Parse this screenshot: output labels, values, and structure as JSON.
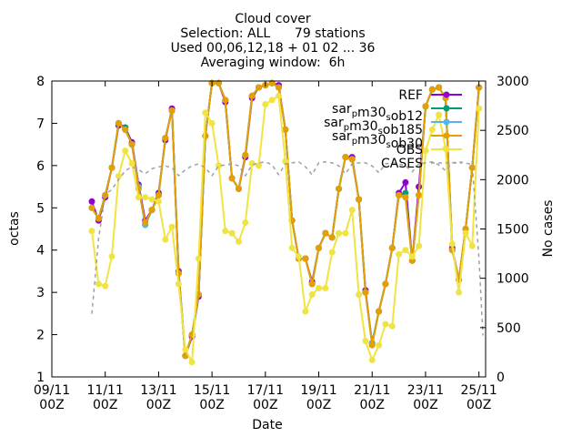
{
  "chart_data": {
    "type": "line",
    "title_lines": [
      "Cloud cover",
      "Selection: ALL      79 stations",
      "Used 00,06,12,18 + 01 02 ... 36",
      "Averaging window:  6h"
    ],
    "xlabel": "Date",
    "ylabel": "octas",
    "y2label": "No cases",
    "xlim": [
      0,
      16.25
    ],
    "ylim": [
      1,
      8
    ],
    "y2lim": [
      0,
      3000
    ],
    "x_ticks": [
      {
        "x": 0,
        "line1": "09/11",
        "line2": "00Z"
      },
      {
        "x": 2,
        "line1": "11/11",
        "line2": "00Z"
      },
      {
        "x": 4,
        "line1": "13/11",
        "line2": "00Z"
      },
      {
        "x": 6,
        "line1": "15/11",
        "line2": "00Z"
      },
      {
        "x": 8,
        "line1": "17/11",
        "line2": "00Z"
      },
      {
        "x": 10,
        "line1": "19/11",
        "line2": "00Z"
      },
      {
        "x": 12,
        "line1": "21/11",
        "line2": "00Z"
      },
      {
        "x": 14,
        "line1": "23/11",
        "line2": "00Z"
      },
      {
        "x": 16,
        "line1": "25/11",
        "line2": "00Z"
      }
    ],
    "y_ticks": [
      1,
      2,
      3,
      4,
      5,
      6,
      7,
      8
    ],
    "y2_ticks": [
      0,
      500,
      1000,
      1500,
      2000,
      2500,
      3000
    ],
    "grid": false,
    "legend_position": "top-right",
    "legend": [
      {
        "label_parts": [
          [
            "REF",
            "normal"
          ]
        ],
        "color": "#9400d3",
        "style": "line-point"
      },
      {
        "label_parts": [
          [
            "sar",
            "normal"
          ],
          [
            "p",
            "sub"
          ],
          [
            "m30",
            "normal"
          ],
          [
            "s",
            "sub"
          ],
          [
            "ob12",
            "normal"
          ]
        ],
        "color": "#009e73",
        "style": "line-point"
      },
      {
        "label_parts": [
          [
            "sar",
            "normal"
          ],
          [
            "p",
            "sub"
          ],
          [
            "m30",
            "normal"
          ],
          [
            "s",
            "sub"
          ],
          [
            "ob185",
            "normal"
          ]
        ],
        "color": "#56b4e9",
        "style": "line-point"
      },
      {
        "label_parts": [
          [
            "sar",
            "normal"
          ],
          [
            "p",
            "sub"
          ],
          [
            "m30",
            "normal"
          ],
          [
            "s",
            "sub"
          ],
          [
            "ob30",
            "normal"
          ]
        ],
        "color": "#e69f00",
        "style": "line-point"
      },
      {
        "label_parts": [
          [
            "OBS",
            "normal"
          ]
        ],
        "color": "#f0e442",
        "style": "line-point"
      },
      {
        "label_parts": [
          [
            "CASES",
            "normal"
          ]
        ],
        "color": "#a0a0a0",
        "style": "dashed"
      }
    ],
    "x": [
      1.5,
      1.75,
      2.0,
      2.25,
      2.5,
      2.75,
      3.0,
      3.25,
      3.5,
      3.75,
      4.0,
      4.25,
      4.5,
      4.75,
      5.0,
      5.25,
      5.5,
      5.75,
      6.0,
      6.25,
      6.5,
      6.75,
      7.0,
      7.25,
      7.5,
      7.75,
      8.0,
      8.25,
      8.5,
      8.75,
      9.0,
      9.25,
      9.5,
      9.75,
      10.0,
      10.25,
      10.5,
      10.75,
      11.0,
      11.25,
      11.5,
      11.75,
      12.0,
      12.25,
      12.5,
      12.75,
      13.0,
      13.25,
      13.5,
      13.75,
      14.0,
      14.25,
      14.5,
      14.75,
      15.0,
      15.25,
      15.5,
      15.75,
      16.0
    ],
    "series": [
      {
        "name": "REF",
        "color": "#9400d3",
        "values": [
          5.15,
          4.7,
          5.25,
          5.95,
          6.95,
          6.9,
          6.55,
          5.55,
          4.7,
          4.95,
          5.35,
          6.6,
          7.35,
          3.5,
          1.5,
          1.95,
          2.9,
          6.7,
          7.95,
          7.95,
          7.5,
          5.7,
          5.45,
          6.2,
          7.6,
          7.85,
          7.9,
          7.95,
          7.9,
          6.85,
          4.7,
          3.8,
          3.8,
          3.25,
          4.05,
          4.4,
          4.3,
          5.45,
          6.2,
          6.2,
          5.2,
          3.05,
          1.8,
          2.55,
          3.2,
          4.05,
          5.35,
          5.6,
          3.75,
          5.5,
          7.4,
          7.8,
          7.85,
          7.6,
          4.05,
          3.3,
          4.5,
          5.95,
          7.85
        ]
      },
      {
        "name": "sarpm30sob12",
        "color": "#009e73",
        "values": [
          5.0,
          4.75,
          5.3,
          5.95,
          7.0,
          6.9,
          6.5,
          5.5,
          4.6,
          4.95,
          5.3,
          6.65,
          7.3,
          3.45,
          1.5,
          2.0,
          2.95,
          6.7,
          7.95,
          7.95,
          7.55,
          5.7,
          5.45,
          6.25,
          7.65,
          7.85,
          7.9,
          7.95,
          7.85,
          6.85,
          4.7,
          3.8,
          3.8,
          3.2,
          4.05,
          4.4,
          4.3,
          5.45,
          6.2,
          6.15,
          5.2,
          3.0,
          1.8,
          2.55,
          3.2,
          4.05,
          5.3,
          5.35,
          3.75,
          5.3,
          7.4,
          7.8,
          7.85,
          7.6,
          4.0,
          3.3,
          4.5,
          5.95,
          7.85
        ]
      },
      {
        "name": "sarpm30sob185",
        "color": "#56b4e9",
        "values": [
          5.0,
          4.75,
          5.3,
          5.95,
          7.0,
          6.85,
          6.5,
          5.5,
          4.6,
          4.95,
          5.3,
          6.65,
          7.3,
          3.45,
          1.5,
          2.0,
          2.95,
          6.7,
          7.95,
          7.95,
          7.55,
          5.7,
          5.45,
          6.25,
          7.65,
          7.85,
          7.9,
          7.95,
          7.85,
          6.85,
          4.7,
          3.8,
          3.8,
          3.2,
          4.05,
          4.4,
          4.3,
          5.45,
          6.2,
          6.15,
          5.2,
          3.0,
          1.8,
          2.55,
          3.2,
          4.05,
          5.3,
          5.25,
          3.75,
          5.3,
          7.4,
          7.8,
          7.85,
          7.6,
          4.0,
          3.3,
          4.5,
          5.95,
          7.85
        ]
      },
      {
        "name": "sarpm30sob30",
        "color": "#e69f00",
        "values": [
          5.0,
          4.75,
          5.3,
          5.95,
          7.0,
          6.85,
          6.5,
          5.45,
          4.65,
          4.95,
          5.3,
          6.65,
          7.3,
          3.45,
          1.5,
          2.0,
          2.95,
          6.7,
          7.95,
          7.95,
          7.55,
          5.7,
          5.45,
          6.25,
          7.65,
          7.85,
          7.9,
          7.95,
          7.85,
          6.85,
          4.7,
          3.8,
          3.8,
          3.2,
          4.05,
          4.4,
          4.3,
          5.45,
          6.2,
          6.15,
          5.2,
          3.0,
          1.75,
          2.55,
          3.2,
          4.05,
          5.3,
          5.25,
          3.75,
          5.3,
          7.4,
          7.8,
          7.85,
          7.6,
          4.0,
          3.3,
          4.5,
          5.95,
          7.85
        ]
      },
      {
        "name": "OBS",
        "color": "#f0e442",
        "values": [
          4.45,
          3.2,
          3.15,
          3.85,
          5.75,
          6.35,
          6.05,
          5.25,
          5.25,
          5.2,
          5.15,
          4.25,
          4.55,
          3.2,
          1.65,
          1.35,
          3.8,
          7.25,
          7.0,
          6.0,
          4.45,
          4.4,
          4.2,
          4.65,
          6.05,
          6.0,
          7.45,
          7.55,
          7.65,
          6.1,
          4.05,
          3.85,
          2.55,
          2.95,
          3.1,
          3.1,
          3.95,
          4.4,
          4.4,
          4.95,
          2.95,
          1.85,
          1.4,
          1.75,
          2.25,
          2.2,
          3.9,
          4.0,
          3.85,
          4.1,
          6.35,
          6.85,
          7.2,
          6.4,
          4.15,
          3.0,
          4.4,
          4.1,
          7.35
        ]
      },
      {
        "name": "CASES",
        "color": "#a0a0a0",
        "dashed": true,
        "x": [
          1.5,
          1.75,
          2.0,
          2.25,
          2.5,
          2.75,
          3.0,
          3.25,
          3.5,
          3.75,
          4.0,
          4.25,
          4.5,
          4.75,
          5.0,
          5.25,
          5.5,
          5.75,
          6.0,
          6.25,
          6.5,
          6.75,
          7.0,
          7.25,
          7.5,
          7.75,
          8.0,
          8.25,
          8.5,
          8.75,
          9.0,
          9.25,
          9.5,
          9.75,
          10.0,
          10.25,
          10.5,
          10.75,
          11.0,
          11.25,
          11.5,
          11.75,
          12.0,
          12.25,
          12.5,
          12.75,
          13.0,
          13.25,
          13.5,
          13.75,
          14.0,
          14.25,
          14.5,
          14.75,
          15.0,
          15.25,
          15.5,
          15.75,
          16.0,
          16.15
        ],
        "values": [
          640,
          1400,
          1850,
          1900,
          2000,
          2090,
          2130,
          2100,
          2060,
          2110,
          2130,
          2140,
          2120,
          2040,
          2100,
          2140,
          2160,
          2120,
          2040,
          2140,
          2150,
          2160,
          2140,
          2040,
          2150,
          2170,
          2180,
          2150,
          2050,
          2160,
          2170,
          2180,
          2130,
          2050,
          2170,
          2180,
          2170,
          2140,
          2060,
          2160,
          2170,
          2170,
          2140,
          2070,
          2160,
          2170,
          2160,
          2140,
          2080,
          2160,
          2170,
          2180,
          2150,
          2090,
          2170,
          2180,
          2170,
          2150,
          1200,
          420
        ]
      }
    ]
  }
}
